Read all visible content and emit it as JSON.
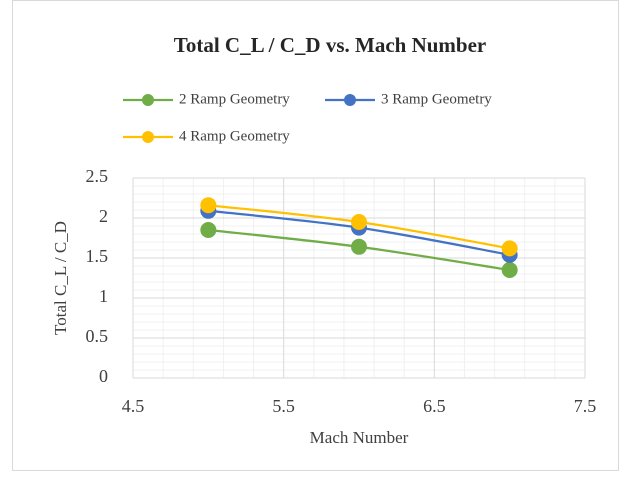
{
  "chart_data": {
    "type": "scatter",
    "title": "Total C_L / C_D vs. Mach Number",
    "x_label": "Mach Number",
    "y_label": "Total C_L / C_D",
    "x": [
      5,
      6,
      7
    ],
    "series": [
      {
        "name": "2 Ramp Geometry",
        "color": "#70ad47",
        "values": [
          1.85,
          1.64,
          1.35
        ]
      },
      {
        "name": "3 Ramp Geometry",
        "color": "#4472c4",
        "values": [
          2.09,
          1.88,
          1.54
        ]
      },
      {
        "name": "4 Ramp Geometry",
        "color": "#ffc000",
        "values": [
          2.16,
          1.95,
          1.62
        ]
      }
    ],
    "xlim": [
      4.5,
      7.5
    ],
    "xticks": [
      4.5,
      5.5,
      6.5,
      7.5
    ],
    "ylim": [
      0,
      2.5
    ],
    "yticks": [
      0,
      0.5,
      1,
      1.5,
      2,
      2.5
    ],
    "grid": true,
    "smooth": true,
    "legend": "top"
  }
}
